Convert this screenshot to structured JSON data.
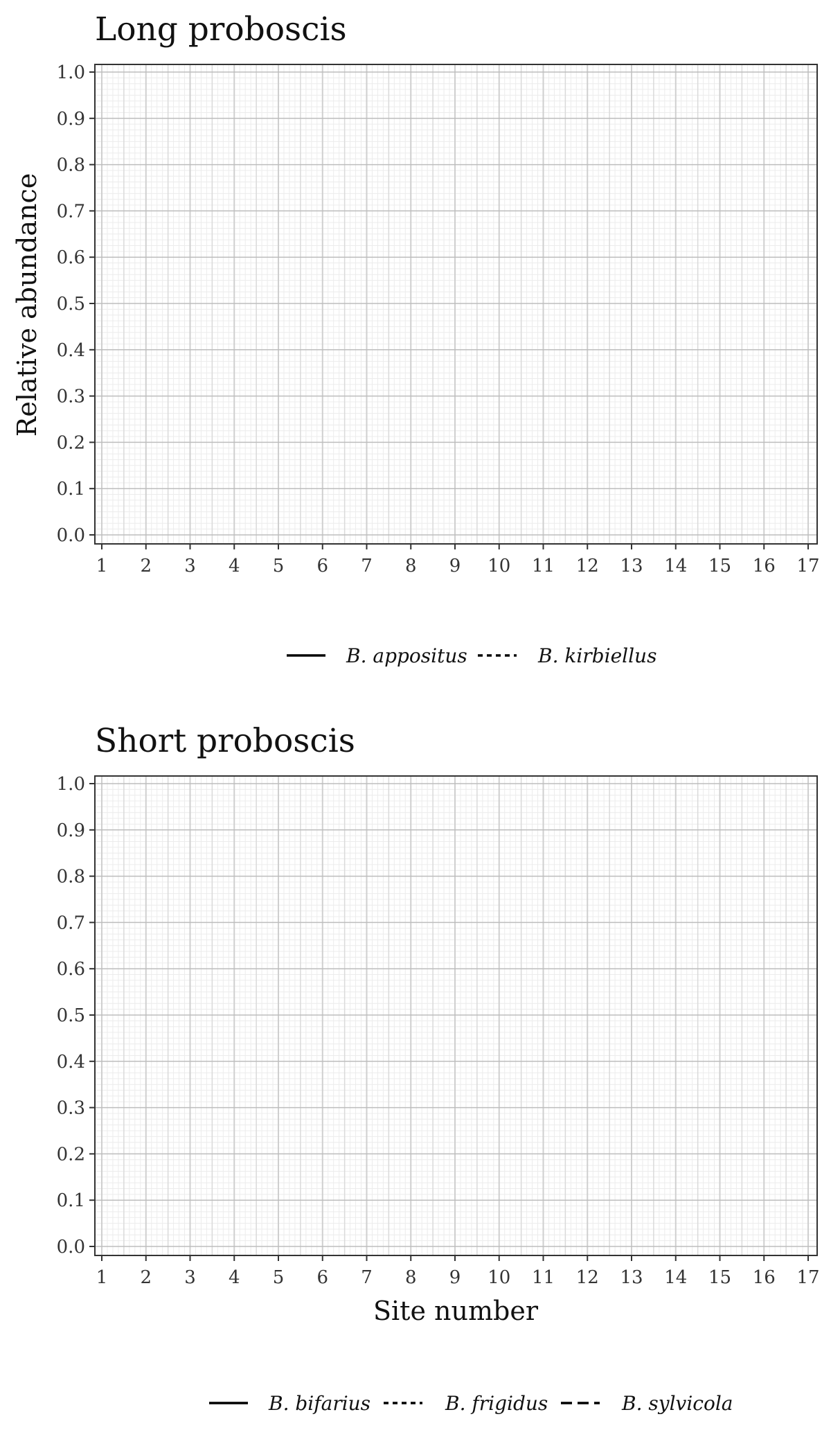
{
  "chart_data": [
    {
      "type": "line",
      "title": "Long proboscis",
      "xlabel": "",
      "ylabel": "Relative abundance",
      "x_ticks": [
        "1",
        "2",
        "3",
        "4",
        "5",
        "6",
        "7",
        "8",
        "9",
        "10",
        "11",
        "12",
        "13",
        "14",
        "15",
        "16",
        "17"
      ],
      "y_ticks": [
        "0.0",
        "0.1",
        "0.2",
        "0.3",
        "0.4",
        "0.5",
        "0.6",
        "0.7",
        "0.8",
        "0.9",
        "1.0"
      ],
      "xlim": [
        1,
        17
      ],
      "ylim": [
        0,
        1
      ],
      "grid": true,
      "legend_position": "bottom",
      "series": [
        {
          "name": "B. appositus",
          "linetype": "solid",
          "values": []
        },
        {
          "name": "B. kirbiellus",
          "linetype": "dotted",
          "values": []
        }
      ]
    },
    {
      "type": "line",
      "title": "Short proboscis",
      "xlabel": "Site number",
      "ylabel": "",
      "x_ticks": [
        "1",
        "2",
        "3",
        "4",
        "5",
        "6",
        "7",
        "8",
        "9",
        "10",
        "11",
        "12",
        "13",
        "14",
        "15",
        "16",
        "17"
      ],
      "y_ticks": [
        "0.0",
        "0.1",
        "0.2",
        "0.3",
        "0.4",
        "0.5",
        "0.6",
        "0.7",
        "0.8",
        "0.9",
        "1.0"
      ],
      "xlim": [
        1,
        17
      ],
      "ylim": [
        0,
        1
      ],
      "grid": true,
      "legend_position": "bottom",
      "series": [
        {
          "name": "B. bifarius",
          "linetype": "solid",
          "values": []
        },
        {
          "name": "B. frigidus",
          "linetype": "dotted",
          "values": []
        },
        {
          "name": "B. sylvicola",
          "linetype": "dashed",
          "values": []
        }
      ]
    }
  ]
}
